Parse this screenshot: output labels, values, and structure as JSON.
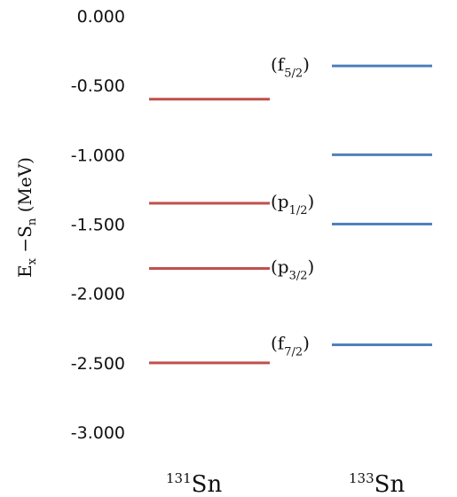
{
  "chart_data": {
    "type": "bar",
    "title": "",
    "ylabel": {
      "main": "E",
      "sub1": "x",
      "mid": " −S",
      "sub2": "n",
      "unit": " (MeV)"
    },
    "ylim": [
      -3.0,
      0.0
    ],
    "yticks": [
      "0.000",
      "-0.500",
      "-1.000",
      "-1.500",
      "-2.000",
      "-2.500",
      "-3.000"
    ],
    "ytick_values": [
      0.0,
      -0.5,
      -1.0,
      -1.5,
      -2.0,
      -2.5,
      -3.0
    ],
    "grid": false,
    "categories": [
      {
        "mass": "131",
        "symbol": "Sn"
      },
      {
        "mass": "133",
        "symbol": "Sn"
      }
    ],
    "series": [
      {
        "category_index": 0,
        "color": "#c0504d",
        "levels": [
          -0.6,
          -1.35,
          -1.82,
          -2.5
        ]
      },
      {
        "category_index": 1,
        "color": "#4f81bd",
        "levels": [
          -0.36,
          -1.0,
          -1.5,
          -2.37
        ]
      }
    ],
    "orbital_labels": [
      {
        "base": "(f",
        "sub": "5/2",
        "close": ")",
        "energy": -0.36
      },
      {
        "base": "(p",
        "sub": "1/2",
        "close": ")",
        "energy": -1.35
      },
      {
        "base": "(p",
        "sub": "3/2",
        "close": ")",
        "energy": -1.82
      },
      {
        "base": "(f",
        "sub": "7/2",
        "close": ")",
        "energy": -2.37
      }
    ]
  }
}
